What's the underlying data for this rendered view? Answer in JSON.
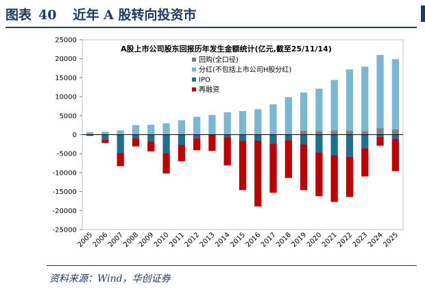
{
  "figure": {
    "label": "图表",
    "number": "40",
    "title": "近年 A 股转向投资市"
  },
  "source": "资料来源：Wind，华创证券",
  "colors": {
    "buyback": "#7f7f7f",
    "dividend": "#79b8d2",
    "ipo": "#1f6f93",
    "refinancing": "#c00000",
    "title": "#1f3864"
  },
  "chart_data": {
    "type": "bar",
    "stacked": true,
    "title": "A股上市公司股东回报历年发生金额统计(亿元,截至25/11/14)",
    "xlabel": "",
    "ylabel": "",
    "ylim": [
      -25000,
      25000
    ],
    "yticks": [
      25000,
      20000,
      15000,
      10000,
      5000,
      0,
      -5000,
      -10000,
      -15000,
      -20000,
      -25000
    ],
    "categories": [
      "2005",
      "2006",
      "2007",
      "2008",
      "2009",
      "2010",
      "2011",
      "2012",
      "2013",
      "2014",
      "2015",
      "2016",
      "2017",
      "2018",
      "2019",
      "2020",
      "2021",
      "2022",
      "2023",
      "2024",
      "2025"
    ],
    "legend_position": "top-left",
    "series": [
      {
        "name": "回购(全口径)",
        "key": "buyback",
        "values": [
          0,
          0,
          0,
          0,
          0,
          0,
          0,
          0,
          0,
          0,
          0,
          0,
          0,
          0,
          1000,
          900,
          1100,
          1000,
          900,
          1700,
          1400
        ]
      },
      {
        "name": "分红(不包括上市公司H股分红)",
        "key": "dividend",
        "values": [
          700,
          800,
          1100,
          2500,
          2600,
          3000,
          3800,
          4700,
          5200,
          5900,
          6200,
          6700,
          8000,
          9900,
          10100,
          11200,
          13300,
          16200,
          17000,
          19300,
          18500
        ]
      },
      {
        "name": "IPO",
        "key": "ipo",
        "values": [
          -100,
          -1300,
          -4800,
          -1000,
          -1800,
          -4800,
          -2700,
          -1000,
          0,
          -700,
          -1600,
          -1500,
          -2300,
          -1400,
          -2500,
          -4700,
          -5400,
          -5800,
          -3600,
          -600,
          -1100
        ]
      },
      {
        "name": "再融资",
        "key": "refinancing",
        "values": [
          -200,
          -900,
          -3500,
          -2100,
          -2600,
          -5400,
          -4300,
          -3100,
          -4300,
          -7400,
          -13000,
          -17400,
          -13000,
          -10000,
          -12100,
          -11500,
          -12300,
          -10600,
          -7400,
          -2300,
          -8500
        ]
      }
    ]
  }
}
